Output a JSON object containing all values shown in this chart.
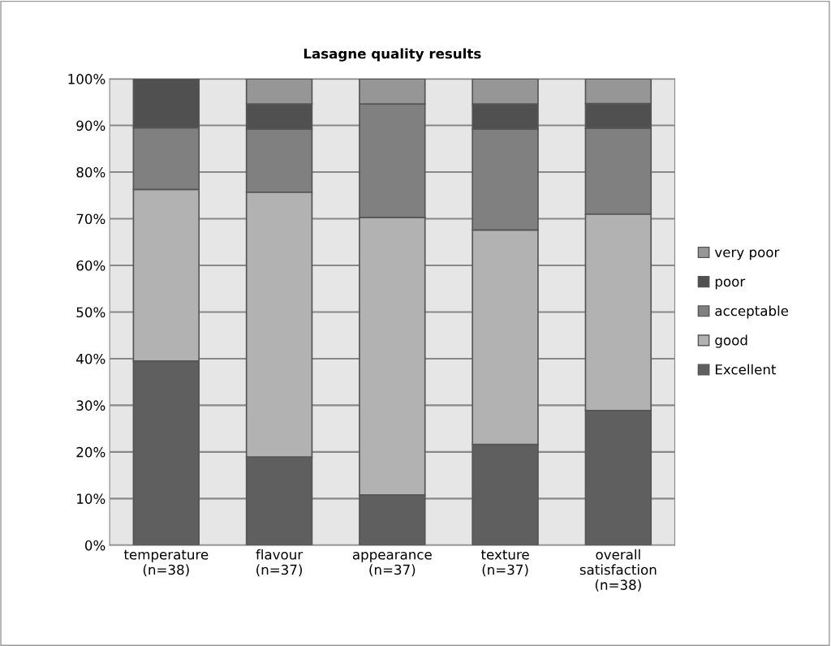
{
  "chart_data": {
    "type": "bar",
    "title": "Lasagne quality results",
    "stacked": true,
    "categories": [
      "temperature\n(n=38)",
      "flavour\n(n=37)",
      "appearance\n(n=37)",
      "texture\n(n=37)",
      "overall\nsatisfaction\n(n=38)"
    ],
    "series": [
      {
        "name": "Excellent",
        "color": "#5f5f5f",
        "values": [
          39.5,
          18.9,
          10.8,
          21.6,
          28.9
        ]
      },
      {
        "name": "good",
        "color": "#b2b2b2",
        "values": [
          36.8,
          56.8,
          59.5,
          46.0,
          42.1
        ]
      },
      {
        "name": "acceptable",
        "color": "#808080",
        "values": [
          13.2,
          13.5,
          24.3,
          21.6,
          18.4
        ]
      },
      {
        "name": "poor",
        "color": "#505050",
        "values": [
          10.5,
          5.4,
          0,
          5.4,
          5.3
        ]
      },
      {
        "name": "very poor",
        "color": "#969696",
        "values": [
          0,
          5.4,
          5.4,
          5.4,
          5.3
        ]
      }
    ],
    "ylim": [
      0,
      100
    ],
    "yticks": [
      {
        "value": 0,
        "label": "0%"
      },
      {
        "value": 10,
        "label": "10%"
      },
      {
        "value": 20,
        "label": "20%"
      },
      {
        "value": 30,
        "label": "30%"
      },
      {
        "value": 40,
        "label": "40%"
      },
      {
        "value": 50,
        "label": "50%"
      },
      {
        "value": 60,
        "label": "60%"
      },
      {
        "value": 70,
        "label": "70%"
      },
      {
        "value": 80,
        "label": "80%"
      },
      {
        "value": 90,
        "label": "90%"
      },
      {
        "value": 100,
        "label": "100%"
      }
    ],
    "grid": "y",
    "legend": "right"
  }
}
